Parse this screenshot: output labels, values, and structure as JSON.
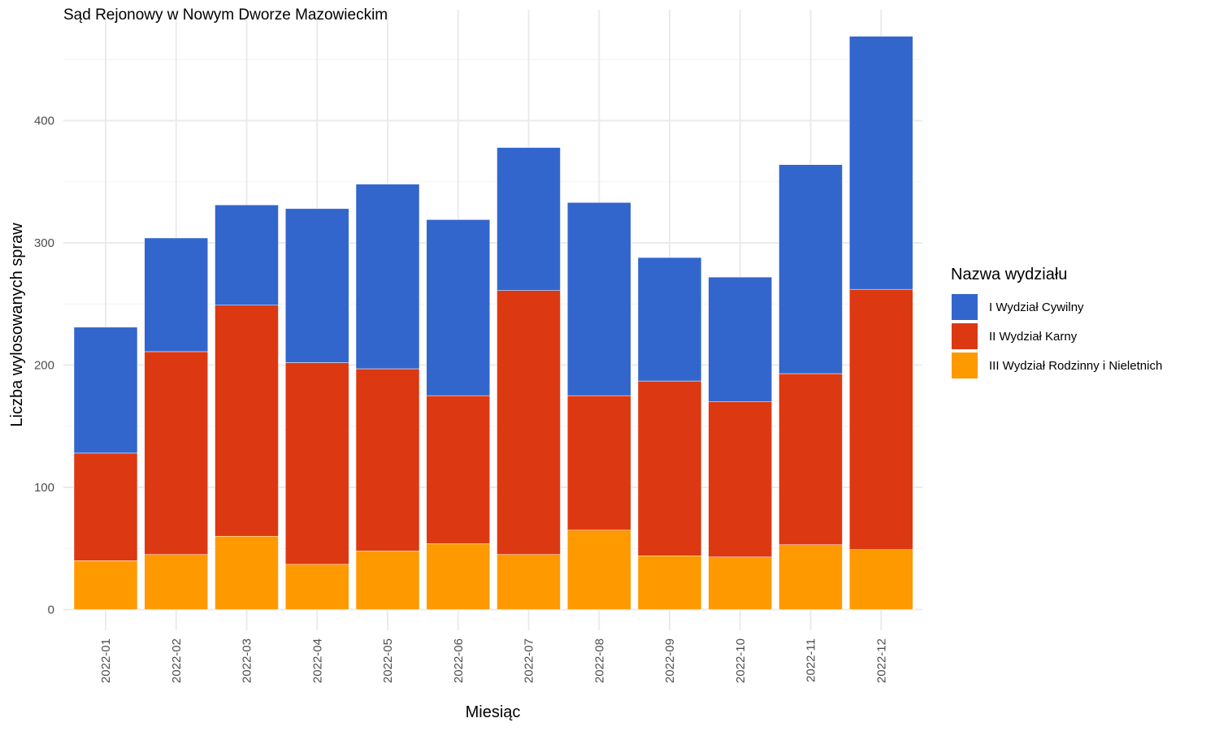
{
  "chart_data": {
    "type": "bar",
    "stacked": true,
    "title": "Sąd Rejonowy w Nowym Dworze Mazowieckim",
    "xlabel": "Miesiąc",
    "ylabel": "Liczba wylosowanych spraw",
    "categories": [
      "2022-01",
      "2022-02",
      "2022-03",
      "2022-04",
      "2022-05",
      "2022-06",
      "2022-07",
      "2022-08",
      "2022-09",
      "2022-10",
      "2022-11",
      "2022-12"
    ],
    "series": [
      {
        "name": "I Wydział Cywilny",
        "color": "#3366CC",
        "values": [
          103,
          93,
          82,
          126,
          151,
          144,
          117,
          158,
          101,
          102,
          171,
          207
        ]
      },
      {
        "name": "II Wydział Karny",
        "color": "#DC3912",
        "values": [
          88,
          166,
          189,
          165,
          149,
          121,
          216,
          110,
          143,
          127,
          140,
          213
        ]
      },
      {
        "name": "III Wydział Rodzinny i Nieletnich",
        "color": "#FF9900",
        "values": [
          40,
          45,
          60,
          37,
          48,
          54,
          45,
          65,
          44,
          43,
          53,
          49
        ]
      }
    ],
    "stack_order_bottom_to_top": [
      "III Wydział Rodzinny i Nieletnich",
      "II Wydział Karny",
      "I Wydział Cywilny"
    ],
    "ylim": [
      0,
      470
    ],
    "yticks": [
      0,
      100,
      200,
      300,
      400
    ],
    "grid": true,
    "legend": {
      "title": "Nazwa wydziału",
      "placement": "right"
    }
  }
}
